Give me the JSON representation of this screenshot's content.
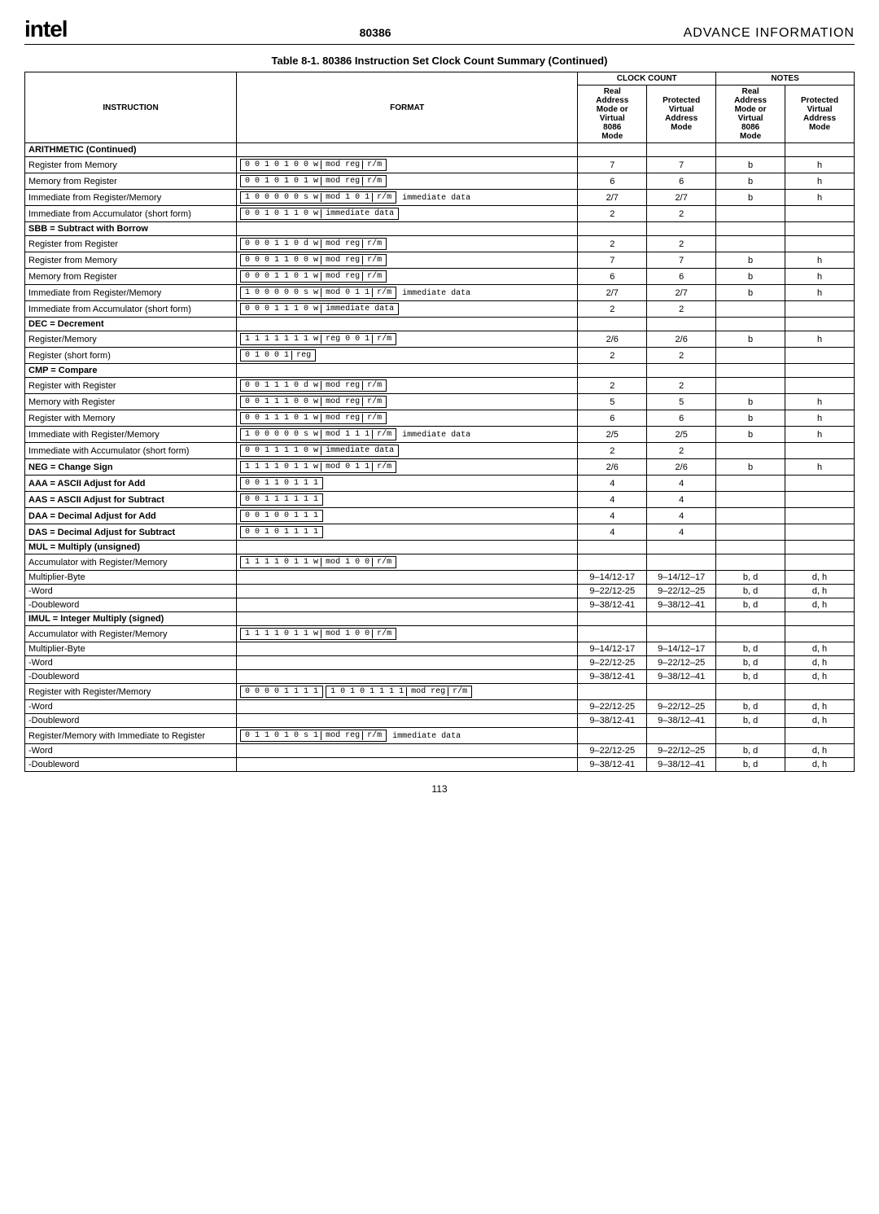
{
  "header": {
    "logo": "intel",
    "chip": "80386",
    "advance": "ADVANCE INFORMATION"
  },
  "table_title": "Table 8-1. 80386 Instruction Set Clock Count Summary (Continued)",
  "columns": {
    "instruction": "INSTRUCTION",
    "format": "FORMAT",
    "clock_group": "CLOCK COUNT",
    "notes_group": "NOTES",
    "cc_real": "Real\nAddress\nMode or\nVirtual\n8086\nMode",
    "cc_prot": "Protected\nVirtual\nAddress\nMode",
    "n_real": "Real\nAddress\nMode or\nVirtual\n8086\nMode",
    "n_prot": "Protected\nVirtual\nAddress\nMode"
  },
  "rows": [
    {
      "label": "ARITHMETIC (Continued)",
      "bold": true
    },
    {
      "label": "Register from Memory",
      "fmt": [
        [
          "0 0 1 0 1 0 0 w",
          "mod reg",
          "r/m"
        ]
      ],
      "cc": [
        "7",
        "7"
      ],
      "n": [
        "b",
        "h"
      ]
    },
    {
      "label": "Memory from Register",
      "fmt": [
        [
          "0 0 1 0 1 0 1 w",
          "mod reg",
          "r/m"
        ]
      ],
      "cc": [
        "6",
        "6"
      ],
      "n": [
        "b",
        "h"
      ]
    },
    {
      "label": "Immediate from Register/Memory",
      "fmt": [
        [
          "1 0 0 0 0 0 s w",
          "mod 1 0 1",
          "r/m"
        ],
        "immediate data"
      ],
      "cc": [
        "2/7",
        "2/7"
      ],
      "n": [
        "b",
        "h"
      ]
    },
    {
      "label": "Immediate from Accumulator (short form)",
      "fmt": [
        [
          "0 0 1 0 1 1 0 w",
          "immediate data"
        ]
      ],
      "cc": [
        "2",
        "2"
      ],
      "n": [
        "",
        ""
      ]
    },
    {
      "label": "SBB = Subtract with Borrow",
      "bold": true
    },
    {
      "label": "Register from Register",
      "fmt": [
        [
          "0 0 0 1 1 0 d w",
          "mod reg",
          "r/m"
        ]
      ],
      "cc": [
        "2",
        "2"
      ],
      "n": [
        "",
        ""
      ]
    },
    {
      "label": "Register from Memory",
      "fmt": [
        [
          "0 0 0 1 1 0 0 w",
          "mod reg",
          "r/m"
        ]
      ],
      "cc": [
        "7",
        "7"
      ],
      "n": [
        "b",
        "h"
      ]
    },
    {
      "label": "Memory from Register",
      "fmt": [
        [
          "0 0 0 1 1 0 1 w",
          "mod reg",
          "r/m"
        ]
      ],
      "cc": [
        "6",
        "6"
      ],
      "n": [
        "b",
        "h"
      ]
    },
    {
      "label": "Immediate from Register/Memory",
      "fmt": [
        [
          "1 0 0 0 0 0 s w",
          "mod 0 1 1",
          "r/m"
        ],
        "immediate data"
      ],
      "cc": [
        "2/7",
        "2/7"
      ],
      "n": [
        "b",
        "h"
      ]
    },
    {
      "label": "Immediate from Accumulator (short form)",
      "fmt": [
        [
          "0 0 0 1 1 1 0 w",
          "immediate data"
        ]
      ],
      "cc": [
        "2",
        "2"
      ],
      "n": [
        "",
        ""
      ]
    },
    {
      "label": "DEC = Decrement",
      "bold": true
    },
    {
      "label": "Register/Memory",
      "fmt": [
        [
          "1 1 1 1 1 1 1 w",
          "reg 0 0 1",
          "r/m"
        ]
      ],
      "cc": [
        "2/6",
        "2/6"
      ],
      "n": [
        "b",
        "h"
      ]
    },
    {
      "label": "Register (short form)",
      "fmt": [
        [
          "0 1 0 0 1",
          "reg"
        ]
      ],
      "cc": [
        "2",
        "2"
      ],
      "n": [
        "",
        ""
      ]
    },
    {
      "label": "CMP = Compare",
      "bold": true
    },
    {
      "label": "Register with Register",
      "fmt": [
        [
          "0 0 1 1 1 0 d w",
          "mod reg",
          "r/m"
        ]
      ],
      "cc": [
        "2",
        "2"
      ],
      "n": [
        "",
        ""
      ]
    },
    {
      "label": "Memory with Register",
      "fmt": [
        [
          "0 0 1 1 1 0 0 w",
          "mod reg",
          "r/m"
        ]
      ],
      "cc": [
        "5",
        "5"
      ],
      "n": [
        "b",
        "h"
      ]
    },
    {
      "label": "Register with Memory",
      "fmt": [
        [
          "0 0 1 1 1 0 1 w",
          "mod reg",
          "r/m"
        ]
      ],
      "cc": [
        "6",
        "6"
      ],
      "n": [
        "b",
        "h"
      ]
    },
    {
      "label": "Immediate with Register/Memory",
      "fmt": [
        [
          "1 0 0 0 0 0 s w",
          "mod 1 1 1",
          "r/m"
        ],
        "immediate data"
      ],
      "cc": [
        "2/5",
        "2/5"
      ],
      "n": [
        "b",
        "h"
      ]
    },
    {
      "label": "Immediate with Accumulator (short form)",
      "fmt": [
        [
          "0 0 1 1 1 1 0 w",
          "immediate data"
        ]
      ],
      "cc": [
        "2",
        "2"
      ],
      "n": [
        "",
        ""
      ]
    },
    {
      "label": "NEG = Change Sign",
      "bold": true,
      "fmt": [
        [
          "1 1 1 1 0 1 1 w",
          "mod 0 1 1",
          "r/m"
        ]
      ],
      "cc": [
        "2/6",
        "2/6"
      ],
      "n": [
        "b",
        "h"
      ]
    },
    {
      "label": "AAA = ASCII Adjust for Add",
      "bold": true,
      "fmt": [
        [
          "0 0 1 1 0 1 1 1"
        ]
      ],
      "cc": [
        "4",
        "4"
      ],
      "n": [
        "",
        ""
      ]
    },
    {
      "label": "AAS = ASCII Adjust for Subtract",
      "bold": true,
      "fmt": [
        [
          "0 0 1 1 1 1 1 1"
        ]
      ],
      "cc": [
        "4",
        "4"
      ],
      "n": [
        "",
        ""
      ]
    },
    {
      "label": "DAA = Decimal Adjust for Add",
      "bold": true,
      "fmt": [
        [
          "0 0 1 0 0 1 1 1"
        ]
      ],
      "cc": [
        "4",
        "4"
      ],
      "n": [
        "",
        ""
      ]
    },
    {
      "label": "DAS = Decimal Adjust for Subtract",
      "bold": true,
      "fmt": [
        [
          "0 0 1 0 1 1 1 1"
        ]
      ],
      "cc": [
        "4",
        "4"
      ],
      "n": [
        "",
        ""
      ]
    },
    {
      "label": "MUL = Multiply (unsigned)",
      "bold": true
    },
    {
      "label": "Accumulator with Register/Memory",
      "fmt": [
        [
          "1 1 1 1 0 1 1 w",
          "mod 1 0 0",
          "r/m"
        ]
      ]
    },
    {
      "label": "Multiplier-Byte",
      "indent": 1,
      "cc": [
        "9–14/12-17",
        "9–14/12–17"
      ],
      "n": [
        "b, d",
        "d, h"
      ]
    },
    {
      "label": "-Word",
      "indent": 2,
      "cc": [
        "9–22/12-25",
        "9–22/12–25"
      ],
      "n": [
        "b, d",
        "d, h"
      ]
    },
    {
      "label": "-Doubleword",
      "indent": 2,
      "cc": [
        "9–38/12-41",
        "9–38/12–41"
      ],
      "n": [
        "b, d",
        "d, h"
      ]
    },
    {
      "label": "IMUL = Integer Multiply (signed)",
      "bold": true
    },
    {
      "label": "Accumulator with Register/Memory",
      "fmt": [
        [
          "1 1 1 1 0 1 1 w",
          "mod 1 0 0",
          "r/m"
        ]
      ]
    },
    {
      "label": "Multiplier-Byte",
      "indent": 1,
      "cc": [
        "9–14/12-17",
        "9–14/12–17"
      ],
      "n": [
        "b, d",
        "d, h"
      ]
    },
    {
      "label": "-Word",
      "indent": 2,
      "cc": [
        "9–22/12-25",
        "9–22/12–25"
      ],
      "n": [
        "b, d",
        "d, h"
      ]
    },
    {
      "label": "-Doubleword",
      "indent": 2,
      "cc": [
        "9–38/12-41",
        "9–38/12–41"
      ],
      "n": [
        "b, d",
        "d, h"
      ]
    },
    {
      "label": "Register with Register/Memory",
      "fmt": [
        [
          "0 0 0 0 1 1 1 1"
        ],
        [
          "1 0 1 0 1 1 1 1",
          "mod reg",
          "r/m"
        ]
      ]
    },
    {
      "label": "-Word",
      "indent": 2,
      "cc": [
        "9–22/12-25",
        "9–22/12–25"
      ],
      "n": [
        "b, d",
        "d, h"
      ]
    },
    {
      "label": "-Doubleword",
      "indent": 2,
      "cc": [
        "9–38/12-41",
        "9–38/12–41"
      ],
      "n": [
        "b, d",
        "d, h"
      ]
    },
    {
      "label": "Register/Memory with Immediate to Register",
      "fmt": [
        [
          "0 1 1 0 1 0 s 1",
          "mod reg",
          "r/m"
        ],
        "immediate data"
      ]
    },
    {
      "label": "-Word",
      "indent": 2,
      "cc": [
        "9–22/12-25",
        "9–22/12–25"
      ],
      "n": [
        "b, d",
        "d, h"
      ]
    },
    {
      "label": "-Doubleword",
      "indent": 2,
      "cc": [
        "9–38/12-41",
        "9–38/12–41"
      ],
      "n": [
        "b, d",
        "d, h"
      ],
      "last": true
    }
  ],
  "page_number": "113"
}
